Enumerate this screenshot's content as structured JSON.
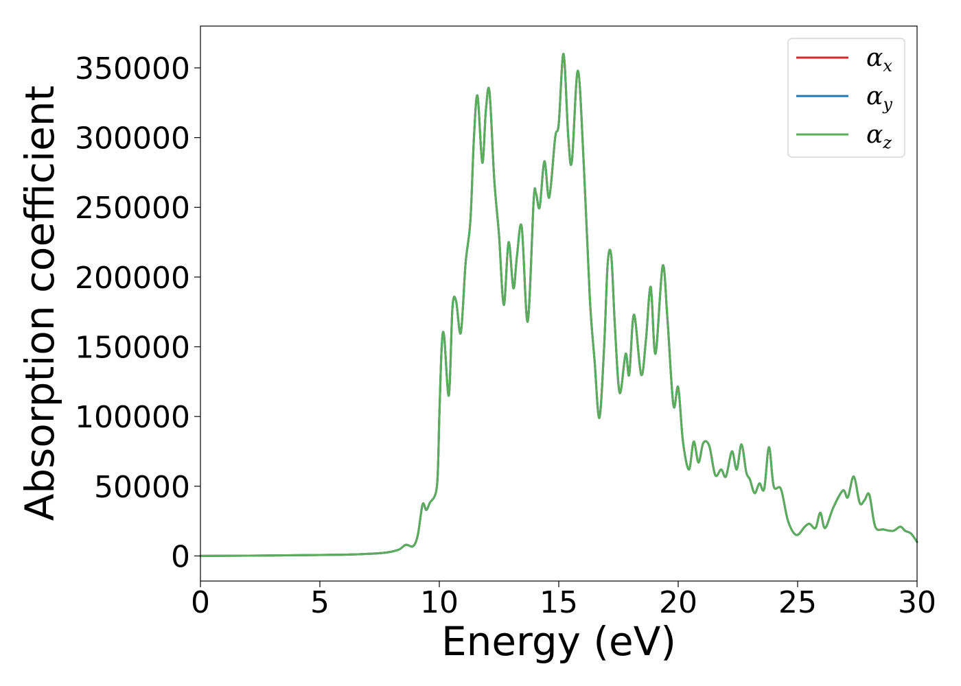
{
  "chart_data": {
    "type": "line",
    "xlabel": "Energy (eV)",
    "ylabel": "Absorption coefficient",
    "xlim": [
      0,
      30
    ],
    "ylim": [
      -18000,
      380000
    ],
    "xticks": [
      0,
      5,
      10,
      15,
      20,
      25,
      30
    ],
    "yticks": [
      0,
      50000,
      100000,
      150000,
      200000,
      250000,
      300000,
      350000
    ],
    "xtick_labels": [
      "0",
      "5",
      "10",
      "15",
      "20",
      "25",
      "30"
    ],
    "ytick_labels": [
      "0",
      "50000",
      "100000",
      "150000",
      "200000",
      "250000",
      "300000",
      "350000"
    ],
    "grid": false,
    "legend_position": "top-right",
    "x": [
      0,
      2,
      4,
      6,
      7,
      7.8,
      8.3,
      8.6,
      8.9,
      9.1,
      9.3,
      9.45,
      9.6,
      9.9,
      10.0,
      10.1,
      10.2,
      10.4,
      10.55,
      10.7,
      10.9,
      11.1,
      11.3,
      11.45,
      11.6,
      11.8,
      11.95,
      12.1,
      12.3,
      12.5,
      12.7,
      12.9,
      13.1,
      13.25,
      13.45,
      13.7,
      13.95,
      14.05,
      14.2,
      14.4,
      14.6,
      14.85,
      15.0,
      15.2,
      15.4,
      15.55,
      15.8,
      16.05,
      16.3,
      16.5,
      16.7,
      16.9,
      17.05,
      17.2,
      17.35,
      17.55,
      17.8,
      17.95,
      18.15,
      18.45,
      18.65,
      18.85,
      19.05,
      19.35,
      19.55,
      19.8,
      20.0,
      20.2,
      20.45,
      20.65,
      20.85,
      21.05,
      21.3,
      21.55,
      21.8,
      22.0,
      22.25,
      22.45,
      22.65,
      22.85,
      23.0,
      23.2,
      23.4,
      23.6,
      23.8,
      24.0,
      24.3,
      24.6,
      24.95,
      25.3,
      25.5,
      25.75,
      25.95,
      26.15,
      26.5,
      26.9,
      27.1,
      27.35,
      27.6,
      27.8,
      28.0,
      28.25,
      28.6,
      29.0,
      29.3,
      29.5,
      29.75,
      30.0
    ],
    "series": [
      {
        "name": "αx",
        "color": "#d62728",
        "values": [
          0,
          200,
          500,
          900,
          1500,
          2500,
          4500,
          8000,
          7000,
          15000,
          37000,
          33000,
          38000,
          50000,
          100000,
          150000,
          158000,
          115000,
          178000,
          183000,
          160000,
          210000,
          240000,
          300000,
          330000,
          282000,
          320000,
          333000,
          270000,
          230000,
          180000,
          225000,
          192000,
          215000,
          236000,
          168000,
          255000,
          260000,
          250000,
          283000,
          257000,
          300000,
          310000,
          360000,
          300000,
          283000,
          348000,
          280000,
          185000,
          140000,
          99000,
          150000,
          210000,
          215000,
          165000,
          117000,
          145000,
          130000,
          173000,
          130000,
          155000,
          193000,
          145000,
          208000,
          170000,
          108000,
          121000,
          82000,
          62000,
          82000,
          67000,
          81000,
          79000,
          58000,
          62000,
          57000,
          75000,
          62000,
          80000,
          60000,
          55000,
          45000,
          52000,
          48000,
          78000,
          50000,
          48000,
          25000,
          15000,
          21000,
          23000,
          20000,
          31000,
          20000,
          35000,
          47000,
          42000,
          57000,
          38000,
          40000,
          44000,
          21000,
          19000,
          18000,
          21000,
          18000,
          16000,
          10000
        ]
      },
      {
        "name": "αy",
        "color": "#1f77b4",
        "values": [
          0,
          200,
          500,
          900,
          1500,
          2500,
          4500,
          8000,
          7000,
          15000,
          37000,
          33000,
          38000,
          50000,
          100000,
          150000,
          158000,
          115000,
          178000,
          183000,
          160000,
          210000,
          240000,
          300000,
          330000,
          282000,
          320000,
          333000,
          270000,
          230000,
          180000,
          225000,
          192000,
          215000,
          236000,
          168000,
          255000,
          260000,
          250000,
          283000,
          257000,
          300000,
          310000,
          360000,
          300000,
          283000,
          348000,
          280000,
          185000,
          140000,
          99000,
          150000,
          210000,
          215000,
          165000,
          117000,
          145000,
          130000,
          173000,
          130000,
          155000,
          193000,
          145000,
          208000,
          170000,
          108000,
          121000,
          82000,
          62000,
          82000,
          67000,
          81000,
          79000,
          58000,
          62000,
          57000,
          75000,
          62000,
          80000,
          60000,
          55000,
          45000,
          52000,
          48000,
          78000,
          50000,
          48000,
          25000,
          15000,
          21000,
          23000,
          20000,
          31000,
          20000,
          35000,
          47000,
          42000,
          57000,
          38000,
          40000,
          44000,
          21000,
          19000,
          18000,
          21000,
          18000,
          16000,
          10000
        ]
      },
      {
        "name": "αz",
        "color": "#5aad5a",
        "values": [
          0,
          200,
          500,
          900,
          1500,
          2500,
          4500,
          8000,
          7000,
          15000,
          37000,
          33000,
          38000,
          50000,
          100000,
          150000,
          158000,
          115000,
          178000,
          183000,
          160000,
          210000,
          240000,
          300000,
          330000,
          282000,
          320000,
          333000,
          270000,
          230000,
          180000,
          225000,
          192000,
          215000,
          236000,
          168000,
          255000,
          260000,
          250000,
          283000,
          257000,
          300000,
          310000,
          360000,
          300000,
          283000,
          348000,
          280000,
          185000,
          140000,
          99000,
          150000,
          210000,
          215000,
          165000,
          117000,
          145000,
          130000,
          173000,
          130000,
          155000,
          193000,
          145000,
          208000,
          170000,
          108000,
          121000,
          82000,
          62000,
          82000,
          67000,
          81000,
          79000,
          58000,
          62000,
          57000,
          75000,
          62000,
          80000,
          60000,
          55000,
          45000,
          52000,
          48000,
          78000,
          50000,
          48000,
          25000,
          15000,
          21000,
          23000,
          20000,
          31000,
          20000,
          35000,
          47000,
          42000,
          57000,
          38000,
          40000,
          44000,
          21000,
          19000,
          18000,
          21000,
          18000,
          16000,
          10000
        ]
      }
    ],
    "legend": [
      {
        "symbol": "α",
        "sub": "x",
        "color": "#d62728"
      },
      {
        "symbol": "α",
        "sub": "y",
        "color": "#1f77b4"
      },
      {
        "symbol": "α",
        "sub": "z",
        "color": "#5aad5a"
      }
    ]
  }
}
